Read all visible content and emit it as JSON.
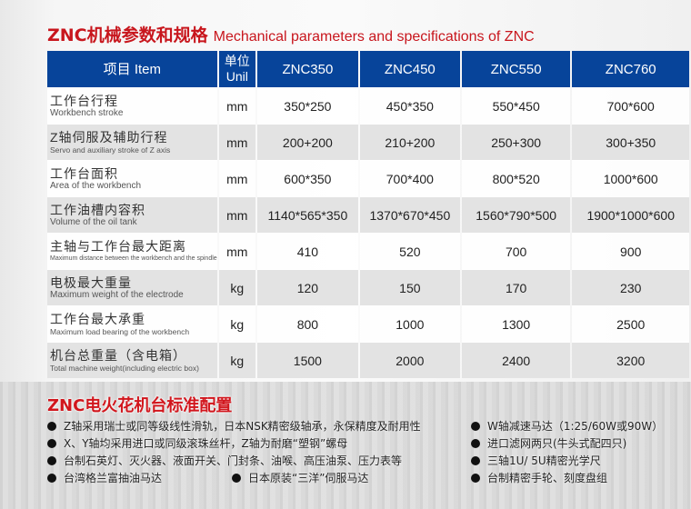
{
  "title": {
    "cn": "ZNC机械参数和规格",
    "en": "Mechanical parameters and specifications of ZNC"
  },
  "table": {
    "headers": [
      "项目 Item",
      "单位 Unil",
      "ZNC350",
      "ZNC450",
      "ZNC550",
      "ZNC760"
    ],
    "rows": [
      {
        "cn": "工作台行程",
        "en": "Workbench stroke",
        "unit": "mm",
        "values": [
          "350*250",
          "450*350",
          "550*450",
          "700*600"
        ]
      },
      {
        "cn": "Z轴伺服及辅助行程",
        "en": "Servo and auxiliary stroke of Z axis",
        "unit": "mm",
        "values": [
          "200+200",
          "210+200",
          "250+300",
          "300+350"
        ]
      },
      {
        "cn": "工作台面积",
        "en": "Area of the workbench",
        "unit": "mm",
        "values": [
          "600*350",
          "700*400",
          "800*520",
          "1000*600"
        ]
      },
      {
        "cn": "工作油槽内容积",
        "en": "Volume of the oil tank",
        "unit": "mm",
        "values": [
          "1140*565*350",
          "1370*670*450",
          "1560*790*500",
          "1900*1000*600"
        ]
      },
      {
        "cn": "主轴与工作台最大距离",
        "en": "Maximum distance between the workbench and the spindle",
        "unit": "mm",
        "values": [
          "410",
          "520",
          "700",
          "900"
        ]
      },
      {
        "cn": "电极最大重量",
        "en": "Maximum weight of the electrode",
        "unit": "kg",
        "values": [
          "120",
          "150",
          "170",
          "230"
        ]
      },
      {
        "cn": "工作台最大承重",
        "en": "Maximum load bearing of the workbench",
        "unit": "kg",
        "values": [
          "800",
          "1000",
          "1300",
          "2500"
        ]
      },
      {
        "cn": "机台总重量（含电箱）",
        "en": "Total machine weight(including electric box)",
        "unit": "kg",
        "values": [
          "1500",
          "2000",
          "2400",
          "3200"
        ]
      }
    ]
  },
  "config": {
    "title": "ZNC电火花机台标准配置",
    "left": [
      "Z轴采用瑞士或同等级线性滑轨，日本NSK精密级轴承，永保精度及耐用性",
      "X、Y轴均采用进口或同级滚珠丝杆，Z轴为耐磨“塑钢”螺母",
      "台制石英灯、灭火器、液面开关、门封条、油喉、高压油泵、压力表等",
      "台湾格兰富抽油马达"
    ],
    "extra": "日本原装“三洋”伺服马达",
    "right": [
      "W轴减速马达（1:25/60W或90W）",
      "进口滤网两只(牛头式配四只)",
      "三轴1U/ 5U精密光学尺",
      "台制精密手轮、刻度盘组"
    ]
  }
}
